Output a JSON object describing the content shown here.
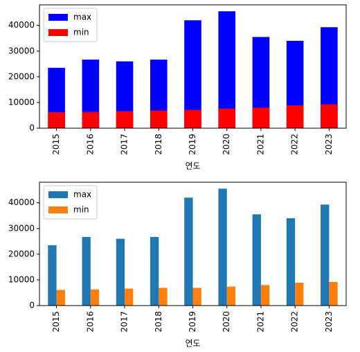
{
  "chart_data": [
    {
      "type": "bar",
      "bar_layout": "overlay",
      "xlabel": "연도",
      "categories": [
        "2015",
        "2016",
        "2017",
        "2018",
        "2019",
        "2020",
        "2021",
        "2022",
        "2023"
      ],
      "series": [
        {
          "name": "max",
          "color": "#0000ff",
          "values": [
            23500,
            26700,
            26000,
            26700,
            42000,
            45500,
            35500,
            34000,
            39300
          ]
        },
        {
          "name": "min",
          "color": "#ff0000",
          "values": [
            6200,
            6300,
            6600,
            6900,
            7100,
            7600,
            8000,
            8900,
            9300
          ]
        }
      ],
      "ylim": [
        0,
        48000
      ],
      "yticks": [
        0,
        10000,
        20000,
        30000,
        40000
      ],
      "legend": "upper left"
    },
    {
      "type": "bar",
      "bar_layout": "grouped",
      "xlabel": "연도",
      "categories": [
        "2015",
        "2016",
        "2017",
        "2018",
        "2019",
        "2020",
        "2021",
        "2022",
        "2023"
      ],
      "series": [
        {
          "name": "max",
          "color": "#1f77b4",
          "values": [
            23500,
            26700,
            26000,
            26700,
            42000,
            45500,
            35500,
            34000,
            39300
          ]
        },
        {
          "name": "min",
          "color": "#ff7f0e",
          "values": [
            6100,
            6300,
            6600,
            6900,
            6900,
            7400,
            8000,
            8900,
            9200
          ]
        }
      ],
      "ylim": [
        0,
        48000
      ],
      "yticks": [
        0,
        10000,
        20000,
        30000,
        40000
      ],
      "legend": "upper left"
    }
  ]
}
